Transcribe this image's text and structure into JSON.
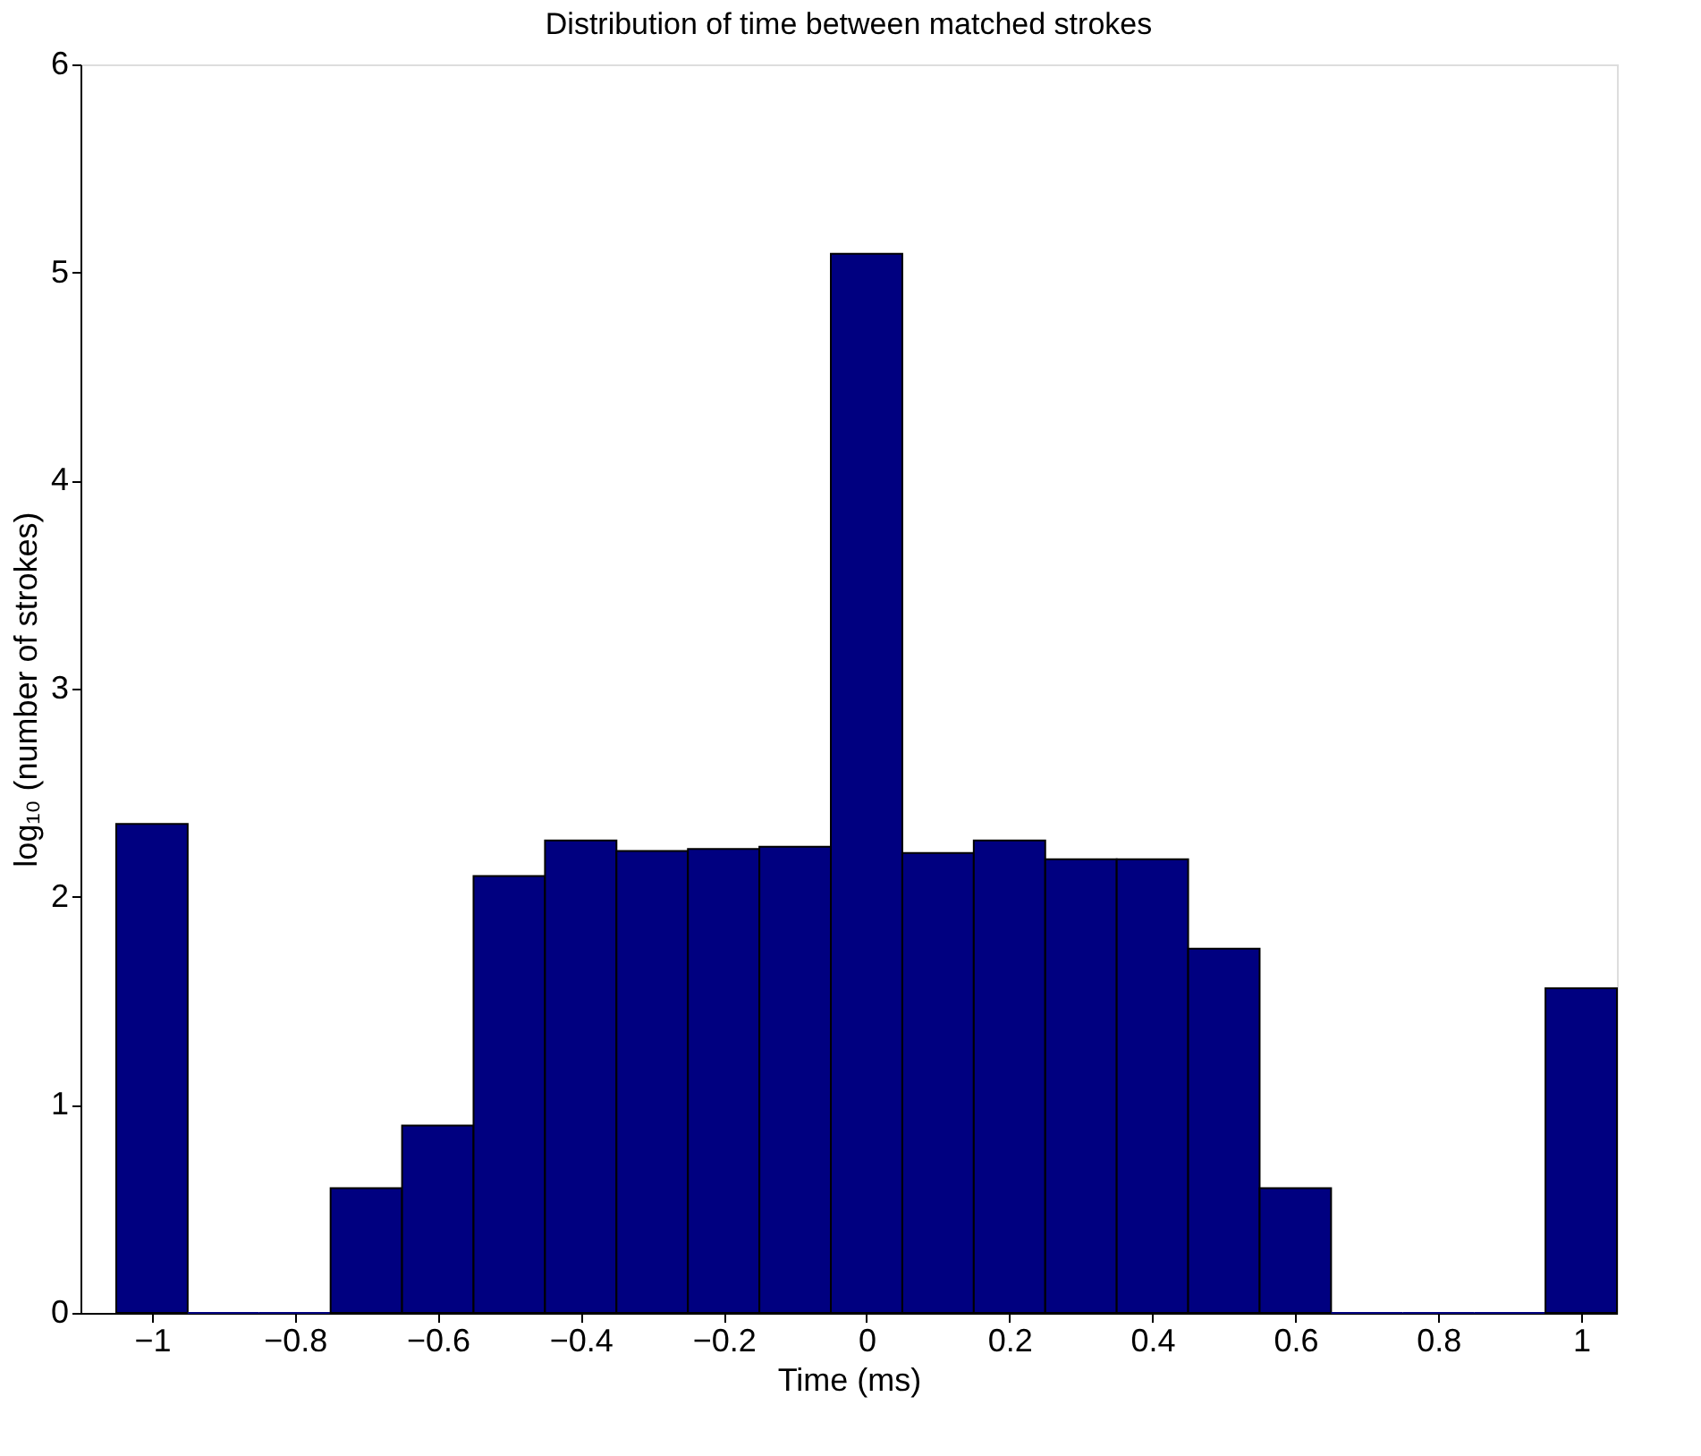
{
  "chart_data": {
    "type": "histogram",
    "title": "Distribution of time between matched strokes",
    "xlabel": "Time (ms)",
    "ylabel": "log₁₀ (number of strokes)",
    "bins": [
      -1.05,
      -0.95,
      -0.85,
      -0.75,
      -0.65,
      -0.55,
      -0.45,
      -0.35,
      -0.25,
      -0.15,
      -0.05,
      0.05,
      0.15,
      0.25,
      0.35,
      0.45,
      0.55,
      0.65,
      0.75,
      0.85,
      0.95,
      1.05
    ],
    "values": [
      2.35,
      0,
      0,
      0.6,
      0.9,
      2.1,
      2.27,
      2.22,
      2.23,
      2.24,
      5.09,
      2.21,
      2.27,
      2.18,
      2.18,
      1.75,
      0.6,
      0,
      0,
      0,
      1.56
    ],
    "color": "#000080",
    "xlim": [
      -1.1,
      1.05
    ],
    "ylim": [
      0,
      6
    ],
    "xticks": [
      -1,
      -0.8,
      -0.6,
      -0.4,
      -0.2,
      0,
      0.2,
      0.4,
      0.6,
      0.8,
      1
    ],
    "yticks": [
      0,
      1,
      2,
      3,
      4,
      5,
      6
    ],
    "grid": false
  }
}
